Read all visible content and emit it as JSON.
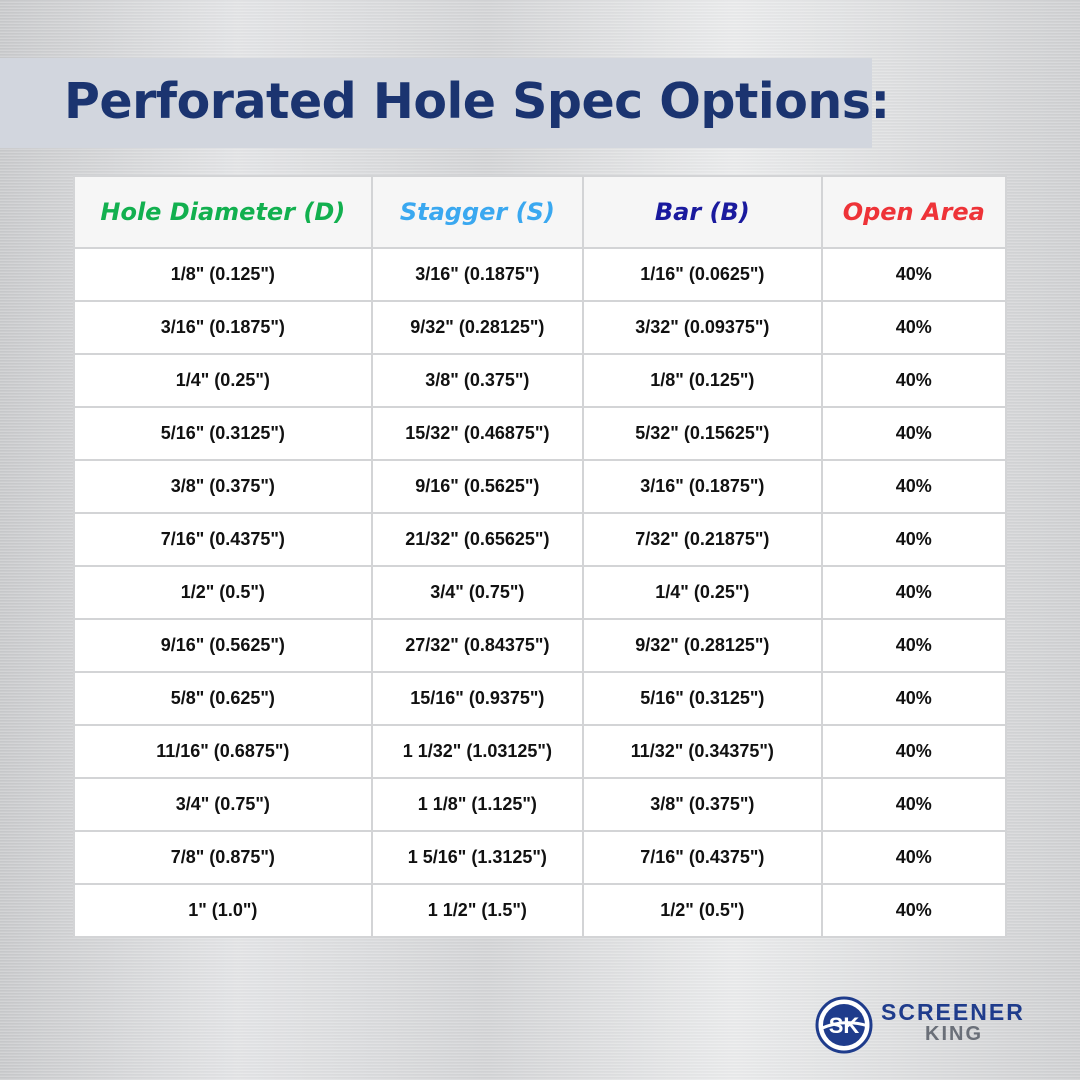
{
  "title": "Perforated Hole Spec Options:",
  "colors": {
    "title": "#1b3470",
    "hole_diameter_header": "#12b04f",
    "stagger_header": "#3aa8f0",
    "bar_header": "#1a1a9e",
    "open_area_header": "#ee3338"
  },
  "table": {
    "headers": [
      "Hole Diameter (D)",
      "Stagger (S)",
      "Bar (B)",
      "Open Area"
    ],
    "rows": [
      [
        "1/8\" (0.125\")",
        "3/16\" (0.1875\")",
        "1/16\" (0.0625\")",
        "40%"
      ],
      [
        "3/16\" (0.1875\")",
        "9/32\" (0.28125\")",
        "3/32\" (0.09375\")",
        "40%"
      ],
      [
        "1/4\" (0.25\")",
        "3/8\" (0.375\")",
        "1/8\" (0.125\")",
        "40%"
      ],
      [
        "5/16\" (0.3125\")",
        "15/32\" (0.46875\")",
        "5/32\" (0.15625\")",
        "40%"
      ],
      [
        "3/8\" (0.375\")",
        "9/16\" (0.5625\")",
        "3/16\" (0.1875\")",
        "40%"
      ],
      [
        "7/16\" (0.4375\")",
        "21/32\" (0.65625\")",
        "7/32\" (0.21875\")",
        "40%"
      ],
      [
        "1/2\" (0.5\")",
        "3/4\" (0.75\")",
        "1/4\" (0.25\")",
        "40%"
      ],
      [
        "9/16\" (0.5625\")",
        "27/32\" (0.84375\")",
        "9/32\" (0.28125\")",
        "40%"
      ],
      [
        "5/8\" (0.625\")",
        "15/16\" (0.9375\")",
        "5/16\" (0.3125\")",
        "40%"
      ],
      [
        "11/16\" (0.6875\")",
        "1 1/32\" (1.03125\")",
        "11/32\" (0.34375\")",
        "40%"
      ],
      [
        "3/4\" (0.75\")",
        "1 1/8\" (1.125\")",
        "3/8\" (0.375\")",
        "40%"
      ],
      [
        "7/8\" (0.875\")",
        "1 5/16\" (1.3125\")",
        "7/16\" (0.4375\")",
        "40%"
      ],
      [
        "1\" (1.0\")",
        "1 1/2\" (1.5\")",
        "1/2\" (0.5\")",
        "40%"
      ]
    ]
  },
  "logo": {
    "monogram": "SK",
    "line1": "SCREENER",
    "line2": "KING",
    "icon": "sk-circle-logo-icon"
  }
}
